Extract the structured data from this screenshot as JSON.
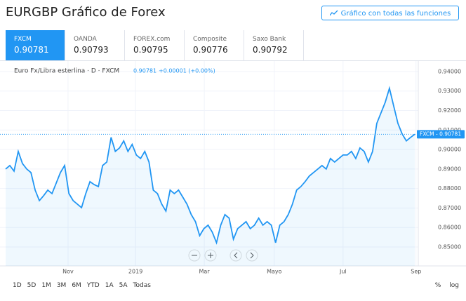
{
  "header": {
    "title": "EURGBP Gráfico de Forex",
    "button": "Gráfico con todas las funciones"
  },
  "tabs": [
    {
      "name": "FXCM",
      "value": "0.90781"
    },
    {
      "name": "OANDA",
      "value": "0.90793"
    },
    {
      "name": "FOREX.com",
      "value": "0.90795"
    },
    {
      "name": "Composite",
      "value": "0.90776"
    },
    {
      "name": "Saxo Bank",
      "value": "0.90792"
    }
  ],
  "toolbar": {
    "ranges": [
      "1D",
      "5D",
      "1M",
      "3M",
      "6M",
      "YTD",
      "1A",
      "5A",
      "Todas"
    ],
    "scales": [
      "%",
      "log"
    ]
  },
  "chart_data": {
    "type": "line",
    "series_title": "Euro Fx/Libra esterlina · D · FXCM",
    "legend_value": "0.90781",
    "legend_change": "+0.00001 (+0.00%)",
    "color": "#2196f3",
    "values": [
      0.89,
      0.8918,
      0.8889,
      0.899,
      0.8928,
      0.89,
      0.8882,
      0.8792,
      0.8738,
      0.8763,
      0.8792,
      0.8774,
      0.8828,
      0.8882,
      0.8918,
      0.8774,
      0.8738,
      0.872,
      0.8702,
      0.8774,
      0.8835,
      0.882,
      0.881,
      0.8918,
      0.8936,
      0.9062,
      0.899,
      0.9008,
      0.9044,
      0.899,
      0.9026,
      0.8972,
      0.8954,
      0.899,
      0.8936,
      0.8792,
      0.8774,
      0.872,
      0.8684,
      0.8792,
      0.8774,
      0.8792,
      0.8756,
      0.872,
      0.8666,
      0.863,
      0.8558,
      0.8594,
      0.8612,
      0.8576,
      0.8522,
      0.8612,
      0.8666,
      0.8648,
      0.854,
      0.8594,
      0.8612,
      0.863,
      0.8594,
      0.8612,
      0.8648,
      0.8612,
      0.863,
      0.8612,
      0.8522,
      0.8612,
      0.863,
      0.8666,
      0.872,
      0.8792,
      0.881,
      0.8835,
      0.8864,
      0.8882,
      0.89,
      0.8918,
      0.89,
      0.8954,
      0.8936,
      0.8954,
      0.8972,
      0.8972,
      0.899,
      0.8954,
      0.9008,
      0.899,
      0.8936,
      0.899,
      0.9134,
      0.9188,
      0.9242,
      0.9314,
      0.9224,
      0.9134,
      0.908,
      0.9044,
      0.9062,
      0.9078
    ],
    "last_price": {
      "value": 0.90781,
      "label": "FXCM - 0.90781"
    },
    "xlim": [
      0,
      97.5
    ],
    "xticks": [
      {
        "value": 14.8,
        "label": "Nov"
      },
      {
        "value": 30.8,
        "label": "2019"
      },
      {
        "value": 47.1,
        "label": "Mar"
      },
      {
        "value": 63.7,
        "label": "Mayo"
      },
      {
        "value": 80.0,
        "label": "Jul"
      },
      {
        "value": 97.3,
        "label": "Sep"
      }
    ],
    "ylim": [
      0.8403,
      0.9432
    ],
    "yticks": [
      {
        "value": 0.85,
        "label": "0.85000"
      },
      {
        "value": 0.86,
        "label": "0.86000"
      },
      {
        "value": 0.87,
        "label": "0.87000"
      },
      {
        "value": 0.88,
        "label": "0.88000"
      },
      {
        "value": 0.89,
        "label": "0.89000"
      },
      {
        "value": 0.9,
        "label": "0.90000"
      },
      {
        "value": 0.91,
        "label": "0.91000"
      },
      {
        "value": 0.92,
        "label": "0.92000"
      },
      {
        "value": 0.93,
        "label": "0.93000"
      },
      {
        "value": 0.94,
        "label": "0.94000"
      }
    ],
    "grid": true
  }
}
